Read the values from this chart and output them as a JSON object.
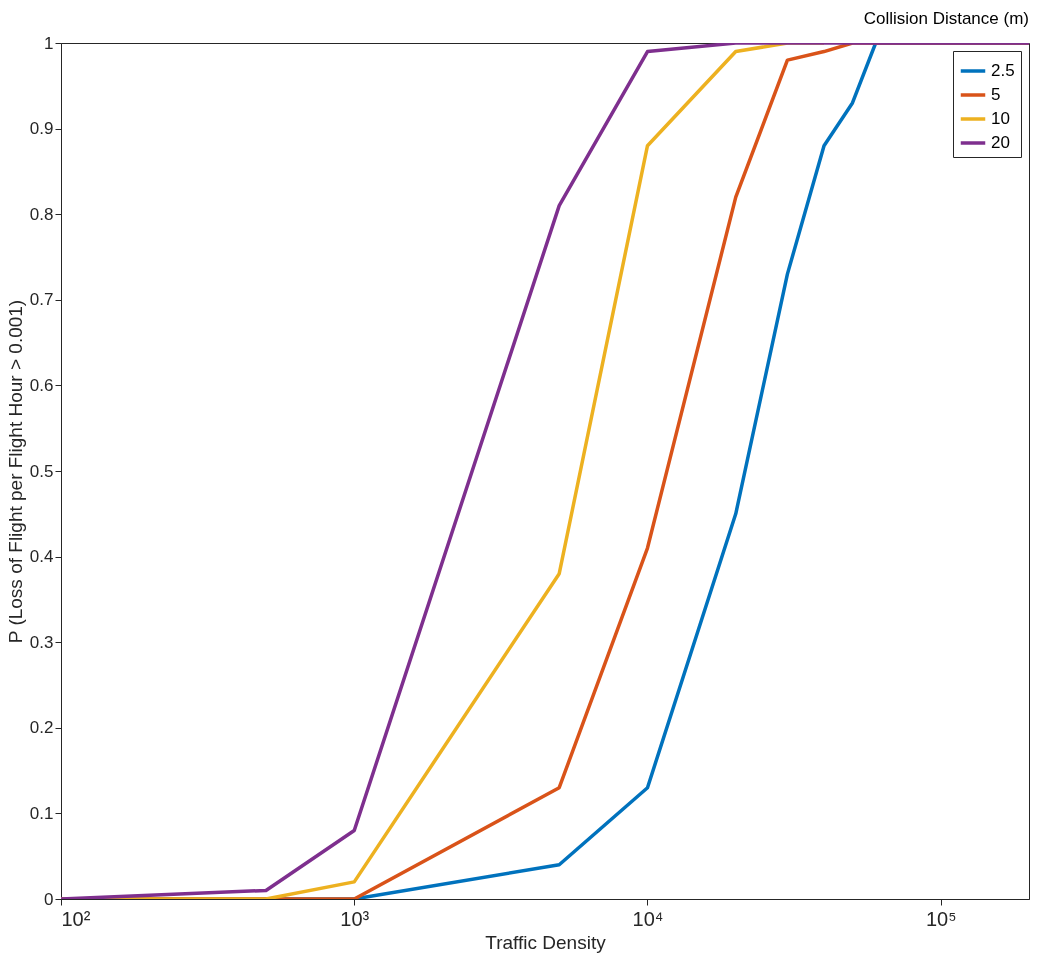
{
  "chart_data": {
    "type": "line",
    "xlabel": "Traffic Density",
    "ylabel": "P (Loss of Flight per Flight Hour > 0.001)",
    "legend_title": "Collision Distance (m)",
    "x": [
      100,
      500,
      1000,
      5000,
      10000,
      20000,
      30000,
      40000,
      50000,
      60000,
      200000
    ],
    "series": [
      {
        "name": "2.5",
        "color": "#0072bd",
        "values": [
          0,
          0,
          0,
          0.04,
          0.13,
          0.45,
          0.73,
          0.88,
          0.93,
          1,
          1
        ]
      },
      {
        "name": "5",
        "color": "#d95319",
        "values": [
          0,
          0,
          0,
          0.13,
          0.41,
          0.82,
          0.98,
          0.99,
          1,
          1,
          1
        ]
      },
      {
        "name": "10",
        "color": "#edb120",
        "values": [
          0,
          0,
          0.02,
          0.38,
          0.88,
          0.99,
          1,
          1,
          null,
          null,
          null
        ]
      },
      {
        "name": "20",
        "color": "#7e2f8e",
        "values": [
          0,
          0.01,
          0.08,
          0.81,
          0.99,
          1,
          1,
          1,
          1,
          1,
          1
        ]
      }
    ],
    "log": "x",
    "xlim": [
      100,
      200000
    ],
    "xticks": [
      {
        "value": 100,
        "label": "10²"
      },
      {
        "value": 1000,
        "label": "10³"
      },
      {
        "value": 10000,
        "label": "10⁴"
      },
      {
        "value": 100000,
        "label": "10⁵"
      }
    ],
    "ylim": [
      0,
      1
    ],
    "yticks": [
      0,
      0.1,
      0.2,
      0.3,
      0.4,
      0.5,
      0.6,
      0.7,
      0.8,
      0.9,
      1
    ],
    "grid": false,
    "legend": "top right",
    "marker": "none",
    "line_style": "solid"
  }
}
